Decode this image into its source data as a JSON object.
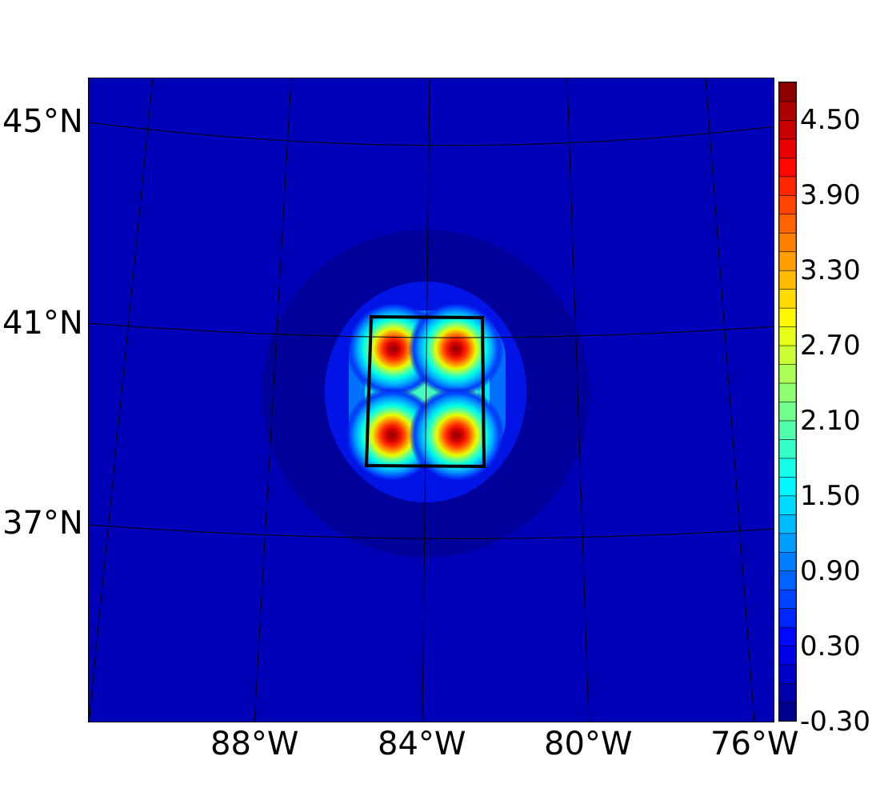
{
  "map": {
    "projection": "conic",
    "lat_labels": [
      "45°N",
      "41°N",
      "37°N"
    ],
    "lon_labels": [
      "88°W",
      "84°W",
      "80°W",
      "76°W"
    ],
    "background_level": 0.3,
    "grid_color": "#000000"
  },
  "field": {
    "peaks": [
      {
        "lat": 40.4,
        "lon": -84.6,
        "value": 4.7
      },
      {
        "lat": 40.4,
        "lon": -83.1,
        "value": 4.7
      },
      {
        "lat": 38.7,
        "lon": -84.6,
        "value": 4.7
      },
      {
        "lat": 38.7,
        "lon": -83.1,
        "value": 4.7
      }
    ],
    "outlined_box": {
      "lat_min": 38.1,
      "lat_max": 41.0,
      "lon_min": -85.3,
      "lon_max": -82.5
    }
  },
  "colorbar": {
    "colormap": "jet",
    "min": -0.3,
    "max": 4.8,
    "step": 0.15,
    "tick_labels": [
      "4.50",
      "3.90",
      "3.30",
      "2.70",
      "2.10",
      "1.50",
      "0.90",
      "0.30",
      "-0.30"
    ],
    "tick_values": [
      4.5,
      3.9,
      3.3,
      2.7,
      2.1,
      1.5,
      0.9,
      0.3,
      -0.3
    ]
  }
}
